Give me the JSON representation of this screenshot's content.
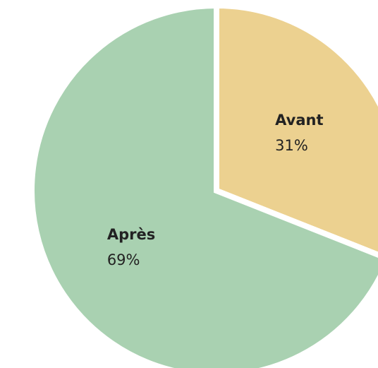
{
  "chart_data": {
    "type": "pie",
    "categories": [
      "Avant",
      "Après"
    ],
    "values": [
      31,
      69
    ],
    "value_labels": [
      "31%",
      "69%"
    ],
    "colors": [
      "#ecd190",
      "#a9d1b1"
    ]
  }
}
